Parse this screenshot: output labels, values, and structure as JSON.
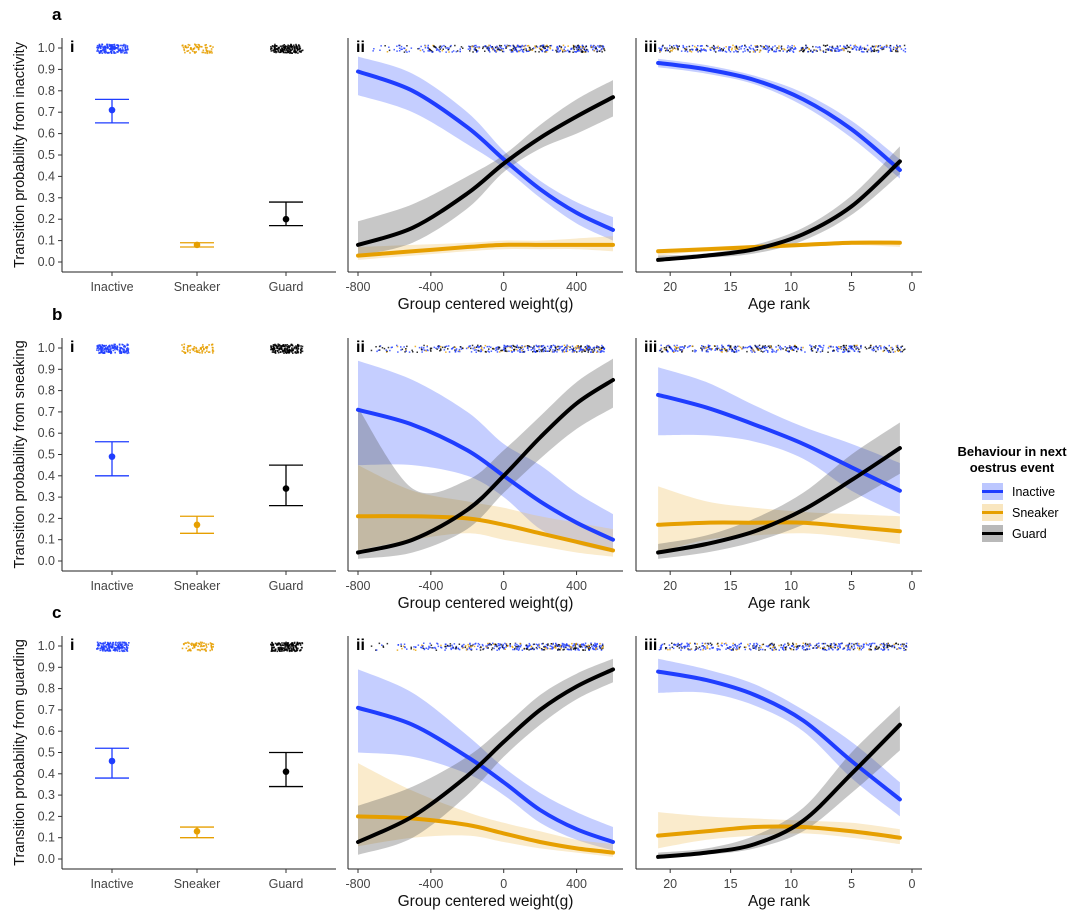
{
  "legend": {
    "title_line1": "Behaviour in next",
    "title_line2": "oestrus event",
    "entries": [
      {
        "label": "Inactive",
        "color": "#1f3dff"
      },
      {
        "label": "Sneaker",
        "color": "#e69f00"
      },
      {
        "label": "Guard",
        "color": "#000000"
      }
    ]
  },
  "chart_data": [
    {
      "row": "a",
      "ylabel": "Transition probability from inactivity",
      "panels": [
        {
          "id": "i",
          "type": "scatter",
          "categories": [
            "Inactive",
            "Sneaker",
            "Guard"
          ],
          "series": [
            {
              "name": "Inactive",
              "value": 0.71,
              "lower": 0.65,
              "upper": 0.76
            },
            {
              "name": "Sneaker",
              "value": 0.08,
              "lower": 0.07,
              "upper": 0.09
            },
            {
              "name": "Guard",
              "value": 0.2,
              "lower": 0.17,
              "upper": 0.28
            }
          ],
          "ylim": [
            0,
            1
          ],
          "yticks": [
            "0.0",
            "0.1",
            "0.2",
            "0.3",
            "0.4",
            "0.5",
            "0.6",
            "0.7",
            "0.8",
            "0.9",
            "1.0"
          ]
        },
        {
          "id": "ii",
          "type": "line",
          "xlabel": "Group centered weight(g)",
          "xlim": [
            -800,
            600
          ],
          "xticks": [
            "-800",
            "-400",
            "0",
            "400"
          ],
          "x": [
            -800,
            -500,
            -200,
            0,
            200,
            400,
            600
          ],
          "series": [
            {
              "name": "Inactive",
              "values": [
                0.89,
                0.8,
                0.63,
                0.48,
                0.34,
                0.23,
                0.15
              ],
              "lower": [
                0.78,
                0.7,
                0.55,
                0.44,
                0.3,
                0.18,
                0.1
              ],
              "upper": [
                0.96,
                0.88,
                0.7,
                0.52,
                0.38,
                0.28,
                0.21
              ]
            },
            {
              "name": "Sneaker",
              "values": [
                0.03,
                0.05,
                0.07,
                0.08,
                0.08,
                0.08,
                0.08
              ],
              "lower": [
                0.01,
                0.03,
                0.05,
                0.06,
                0.06,
                0.06,
                0.05
              ],
              "upper": [
                0.07,
                0.08,
                0.09,
                0.1,
                0.1,
                0.11,
                0.12
              ]
            },
            {
              "name": "Guard",
              "values": [
                0.08,
                0.16,
                0.32,
                0.46,
                0.58,
                0.68,
                0.77
              ],
              "lower": [
                0.03,
                0.09,
                0.25,
                0.42,
                0.53,
                0.6,
                0.68
              ],
              "upper": [
                0.19,
                0.27,
                0.4,
                0.5,
                0.64,
                0.76,
                0.85
              ]
            }
          ]
        },
        {
          "id": "iii",
          "type": "line",
          "xlabel": "Age rank",
          "xlim": [
            22,
            0
          ],
          "xticks": [
            "20",
            "15",
            "10",
            "5",
            "0"
          ],
          "x": [
            21,
            17,
            13,
            9,
            5,
            1
          ],
          "series": [
            {
              "name": "Inactive",
              "values": [
                0.93,
                0.9,
                0.85,
                0.76,
                0.62,
                0.43
              ],
              "lower": [
                0.91,
                0.88,
                0.83,
                0.73,
                0.58,
                0.39
              ],
              "upper": [
                0.95,
                0.92,
                0.87,
                0.79,
                0.66,
                0.48
              ]
            },
            {
              "name": "Sneaker",
              "values": [
                0.05,
                0.06,
                0.07,
                0.08,
                0.09,
                0.09
              ],
              "lower": [
                0.03,
                0.05,
                0.06,
                0.07,
                0.08,
                0.07
              ],
              "upper": [
                0.06,
                0.07,
                0.08,
                0.09,
                0.1,
                0.1
              ]
            },
            {
              "name": "Guard",
              "values": [
                0.01,
                0.03,
                0.06,
                0.13,
                0.26,
                0.47
              ],
              "lower": [
                0.01,
                0.02,
                0.04,
                0.1,
                0.22,
                0.41
              ],
              "upper": [
                0.03,
                0.04,
                0.08,
                0.16,
                0.31,
                0.54
              ]
            }
          ]
        }
      ]
    },
    {
      "row": "b",
      "ylabel": "Transition probability from sneaking",
      "panels": [
        {
          "id": "i",
          "type": "scatter",
          "categories": [
            "Inactive",
            "Sneaker",
            "Guard"
          ],
          "series": [
            {
              "name": "Inactive",
              "value": 0.49,
              "lower": 0.4,
              "upper": 0.56
            },
            {
              "name": "Sneaker",
              "value": 0.17,
              "lower": 0.13,
              "upper": 0.21
            },
            {
              "name": "Guard",
              "value": 0.34,
              "lower": 0.26,
              "upper": 0.45
            }
          ],
          "ylim": [
            0,
            1
          ],
          "yticks": [
            "0.0",
            "0.1",
            "0.2",
            "0.3",
            "0.4",
            "0.5",
            "0.6",
            "0.7",
            "0.8",
            "0.9",
            "1.0"
          ]
        },
        {
          "id": "ii",
          "type": "line",
          "xlabel": "Group centered weight(g)",
          "xlim": [
            -800,
            600
          ],
          "xticks": [
            "-800",
            "-400",
            "0",
            "400"
          ],
          "x": [
            -800,
            -500,
            -200,
            0,
            200,
            400,
            600
          ],
          "series": [
            {
              "name": "Inactive",
              "values": [
                0.71,
                0.64,
                0.52,
                0.4,
                0.28,
                0.18,
                0.1
              ],
              "lower": [
                0.45,
                0.45,
                0.4,
                0.3,
                0.15,
                0.08,
                0.04
              ],
              "upper": [
                0.94,
                0.85,
                0.7,
                0.55,
                0.45,
                0.32,
                0.22
              ]
            },
            {
              "name": "Sneaker",
              "values": [
                0.21,
                0.21,
                0.2,
                0.17,
                0.13,
                0.09,
                0.05
              ],
              "lower": [
                0.05,
                0.1,
                0.13,
                0.1,
                0.07,
                0.04,
                0.02
              ],
              "upper": [
                0.45,
                0.33,
                0.28,
                0.25,
                0.21,
                0.18,
                0.15
              ]
            },
            {
              "name": "Guard",
              "values": [
                0.04,
                0.1,
                0.24,
                0.4,
                0.58,
                0.74,
                0.85
              ],
              "lower": [
                0.01,
                0.04,
                0.15,
                0.32,
                0.48,
                0.62,
                0.72
              ],
              "upper": [
                0.72,
                0.34,
                0.38,
                0.52,
                0.68,
                0.84,
                0.95
              ]
            }
          ]
        },
        {
          "id": "iii",
          "type": "line",
          "xlabel": "Age rank",
          "xlim": [
            22,
            0
          ],
          "xticks": [
            "20",
            "15",
            "10",
            "5",
            "0"
          ],
          "x": [
            21,
            17,
            13,
            9,
            5,
            1
          ],
          "series": [
            {
              "name": "Inactive",
              "values": [
                0.78,
                0.72,
                0.64,
                0.55,
                0.44,
                0.33
              ],
              "lower": [
                0.59,
                0.59,
                0.56,
                0.48,
                0.33,
                0.22
              ],
              "upper": [
                0.91,
                0.84,
                0.73,
                0.63,
                0.55,
                0.46
              ]
            },
            {
              "name": "Sneaker",
              "values": [
                0.17,
                0.18,
                0.18,
                0.18,
                0.16,
                0.14
              ],
              "lower": [
                0.04,
                0.1,
                0.12,
                0.13,
                0.11,
                0.08
              ],
              "upper": [
                0.35,
                0.28,
                0.25,
                0.23,
                0.22,
                0.21
              ]
            },
            {
              "name": "Guard",
              "values": [
                0.04,
                0.08,
                0.14,
                0.24,
                0.38,
                0.53
              ],
              "lower": [
                0.01,
                0.04,
                0.09,
                0.17,
                0.28,
                0.41
              ],
              "upper": [
                0.08,
                0.12,
                0.2,
                0.32,
                0.5,
                0.65
              ]
            }
          ]
        }
      ]
    },
    {
      "row": "c",
      "ylabel": "Transition probability from guarding",
      "panels": [
        {
          "id": "i",
          "type": "scatter",
          "categories": [
            "Inactive",
            "Sneaker",
            "Guard"
          ],
          "series": [
            {
              "name": "Inactive",
              "value": 0.46,
              "lower": 0.38,
              "upper": 0.52
            },
            {
              "name": "Sneaker",
              "value": 0.13,
              "lower": 0.1,
              "upper": 0.15
            },
            {
              "name": "Guard",
              "value": 0.41,
              "lower": 0.34,
              "upper": 0.5
            }
          ],
          "ylim": [
            0,
            1
          ],
          "yticks": [
            "0.0",
            "0.1",
            "0.2",
            "0.3",
            "0.4",
            "0.5",
            "0.6",
            "0.7",
            "0.8",
            "0.9",
            "1.0"
          ]
        },
        {
          "id": "ii",
          "type": "line",
          "xlabel": "Group centered weight(g)",
          "xlim": [
            -800,
            600
          ],
          "xticks": [
            "-800",
            "-400",
            "0",
            "400"
          ],
          "x": [
            -800,
            -500,
            -200,
            0,
            200,
            400,
            600
          ],
          "series": [
            {
              "name": "Inactive",
              "values": [
                0.71,
                0.63,
                0.48,
                0.36,
                0.23,
                0.14,
                0.08
              ],
              "lower": [
                0.5,
                0.48,
                0.4,
                0.3,
                0.17,
                0.09,
                0.04
              ],
              "upper": [
                0.89,
                0.78,
                0.58,
                0.43,
                0.31,
                0.22,
                0.15
              ]
            },
            {
              "name": "Sneaker",
              "values": [
                0.2,
                0.19,
                0.16,
                0.12,
                0.08,
                0.05,
                0.03
              ],
              "lower": [
                0.06,
                0.1,
                0.11,
                0.08,
                0.05,
                0.03,
                0.01
              ],
              "upper": [
                0.45,
                0.32,
                0.22,
                0.17,
                0.13,
                0.09,
                0.07
              ]
            },
            {
              "name": "Guard",
              "values": [
                0.08,
                0.2,
                0.39,
                0.55,
                0.7,
                0.81,
                0.89
              ],
              "lower": [
                0.02,
                0.1,
                0.3,
                0.48,
                0.63,
                0.75,
                0.83
              ],
              "upper": [
                0.25,
                0.34,
                0.48,
                0.62,
                0.77,
                0.87,
                0.94
              ]
            }
          ]
        },
        {
          "id": "iii",
          "type": "line",
          "xlabel": "Age rank",
          "xlim": [
            22,
            0
          ],
          "xticks": [
            "20",
            "15",
            "10",
            "5",
            "0"
          ],
          "x": [
            21,
            17,
            13,
            9,
            5,
            1
          ],
          "series": [
            {
              "name": "Inactive",
              "values": [
                0.88,
                0.84,
                0.77,
                0.65,
                0.46,
                0.28
              ],
              "lower": [
                0.78,
                0.78,
                0.72,
                0.6,
                0.38,
                0.2
              ],
              "upper": [
                0.94,
                0.89,
                0.82,
                0.7,
                0.55,
                0.36
              ]
            },
            {
              "name": "Sneaker",
              "values": [
                0.11,
                0.13,
                0.15,
                0.15,
                0.13,
                0.1
              ],
              "lower": [
                0.05,
                0.09,
                0.11,
                0.12,
                0.1,
                0.07
              ],
              "upper": [
                0.22,
                0.2,
                0.19,
                0.18,
                0.17,
                0.14
              ]
            },
            {
              "name": "Guard",
              "values": [
                0.01,
                0.03,
                0.07,
                0.18,
                0.4,
                0.63
              ],
              "lower": [
                0.01,
                0.02,
                0.05,
                0.13,
                0.31,
                0.51
              ],
              "upper": [
                0.03,
                0.05,
                0.11,
                0.24,
                0.5,
                0.72
              ]
            }
          ]
        }
      ]
    }
  ]
}
